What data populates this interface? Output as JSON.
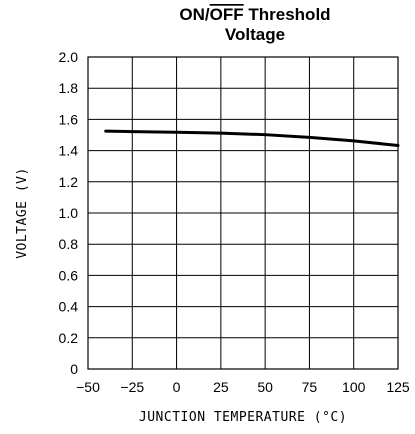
{
  "chart_data": {
    "type": "line",
    "title_line1_prefix": "ON/",
    "title_line1_overbar": "OFF",
    "title_line1_suffix": " Threshold",
    "title_line2": "Voltage",
    "xlabel": "JUNCTION TEMPERATURE (°C)",
    "ylabel": "VOLTAGE (V)",
    "xlim": [
      -50,
      125
    ],
    "ylim": [
      0,
      2.0
    ],
    "x_ticks": [
      "-50",
      "-25",
      "0",
      "25",
      "50",
      "75",
      "100",
      "125"
    ],
    "y_ticks": [
      "0",
      "0.2",
      "0.4",
      "0.6",
      "0.8",
      "1.0",
      "1.2",
      "1.4",
      "1.6",
      "1.8",
      "2.0"
    ],
    "grid": true,
    "series": [
      {
        "x": [
          -40,
          -25,
          0,
          25,
          50,
          75,
          100,
          125
        ],
        "y": [
          1.525,
          1.522,
          1.518,
          1.512,
          1.502,
          1.485,
          1.462,
          1.433
        ]
      }
    ]
  }
}
